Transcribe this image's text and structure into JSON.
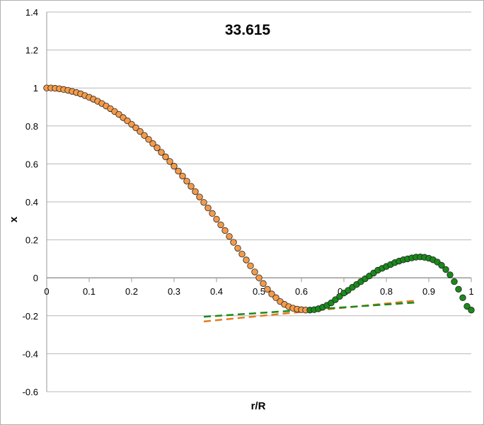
{
  "chart_data": {
    "type": "scatter",
    "title": "33.615",
    "xlabel": "r/R",
    "ylabel": "x",
    "xlim": [
      0,
      1
    ],
    "ylim": [
      -0.6,
      1.4
    ],
    "xticks": [
      "0",
      "0.1",
      "0.2",
      "0.3",
      "0.4",
      "0.5",
      "0.6",
      "0.7",
      "0.8",
      "0.9",
      "1"
    ],
    "yticks": [
      "-0.6",
      "-0.4",
      "-0.2",
      "0",
      "0.2",
      "0.4",
      "0.6",
      "0.8",
      "1",
      "1.2",
      "1.4"
    ],
    "grid": "horizontal",
    "legend": "none",
    "series": [
      {
        "color": "#f59a48",
        "marker": "circle",
        "x": [
          0,
          0.01,
          0.02,
          0.03,
          0.04,
          0.05,
          0.06,
          0.07,
          0.08,
          0.09,
          0.1,
          0.11,
          0.12,
          0.13,
          0.14,
          0.15,
          0.16,
          0.17,
          0.18,
          0.19,
          0.2,
          0.21,
          0.22,
          0.23,
          0.24,
          0.25,
          0.26,
          0.27,
          0.28,
          0.29,
          0.3,
          0.31,
          0.32,
          0.33,
          0.34,
          0.35,
          0.36,
          0.37,
          0.38,
          0.39,
          0.4,
          0.41,
          0.42,
          0.43,
          0.44,
          0.45,
          0.46,
          0.47,
          0.48,
          0.49,
          0.5,
          0.51,
          0.52,
          0.53,
          0.54,
          0.55,
          0.56,
          0.57,
          0.58,
          0.59,
          0.6,
          0.61
        ],
        "y": [
          1,
          1,
          0.998,
          0.996,
          0.992,
          0.988,
          0.982,
          0.976,
          0.969,
          0.96,
          0.951,
          0.941,
          0.93,
          0.918,
          0.905,
          0.891,
          0.876,
          0.861,
          0.844,
          0.827,
          0.809,
          0.79,
          0.771,
          0.75,
          0.729,
          0.707,
          0.685,
          0.661,
          0.637,
          0.613,
          0.588,
          0.562,
          0.536,
          0.509,
          0.482,
          0.454,
          0.426,
          0.397,
          0.368,
          0.339,
          0.309,
          0.279,
          0.249,
          0.218,
          0.187,
          0.156,
          0.125,
          0.094,
          0.063,
          0.031,
          0,
          -0.03,
          -0.06,
          -0.085,
          -0.105,
          -0.125,
          -0.14,
          -0.152,
          -0.16,
          -0.165,
          -0.168,
          -0.17
        ]
      },
      {
        "color": "#1a8a1a",
        "marker": "circle",
        "x": [
          0.62,
          0.63,
          0.64,
          0.65,
          0.66,
          0.67,
          0.68,
          0.69,
          0.7,
          0.71,
          0.72,
          0.73,
          0.74,
          0.75,
          0.76,
          0.77,
          0.78,
          0.79,
          0.8,
          0.81,
          0.82,
          0.83,
          0.84,
          0.85,
          0.86,
          0.87,
          0.88,
          0.89,
          0.9,
          0.91,
          0.92,
          0.93,
          0.94,
          0.95,
          0.96,
          0.97,
          0.98,
          0.99,
          1.0
        ],
        "y": [
          -0.17,
          -0.168,
          -0.163,
          -0.155,
          -0.145,
          -0.132,
          -0.115,
          -0.098,
          -0.08,
          -0.066,
          -0.05,
          -0.035,
          -0.02,
          -0.005,
          0.01,
          0.025,
          0.04,
          0.05,
          0.06,
          0.07,
          0.08,
          0.088,
          0.095,
          0.1,
          0.105,
          0.109,
          0.11,
          0.108,
          0.103,
          0.095,
          0.083,
          0.066,
          0.044,
          0.016,
          -0.02,
          -0.06,
          -0.105,
          -0.15,
          -0.17
        ]
      },
      {
        "color": "#e87a1e",
        "type": "dashed-line",
        "x": [
          0.37,
          0.87
        ],
        "y": [
          -0.23,
          -0.12
        ]
      },
      {
        "color": "#1a8a1a",
        "type": "dashed-line",
        "x": [
          0.37,
          0.87
        ],
        "y": [
          -0.205,
          -0.13
        ]
      }
    ]
  }
}
